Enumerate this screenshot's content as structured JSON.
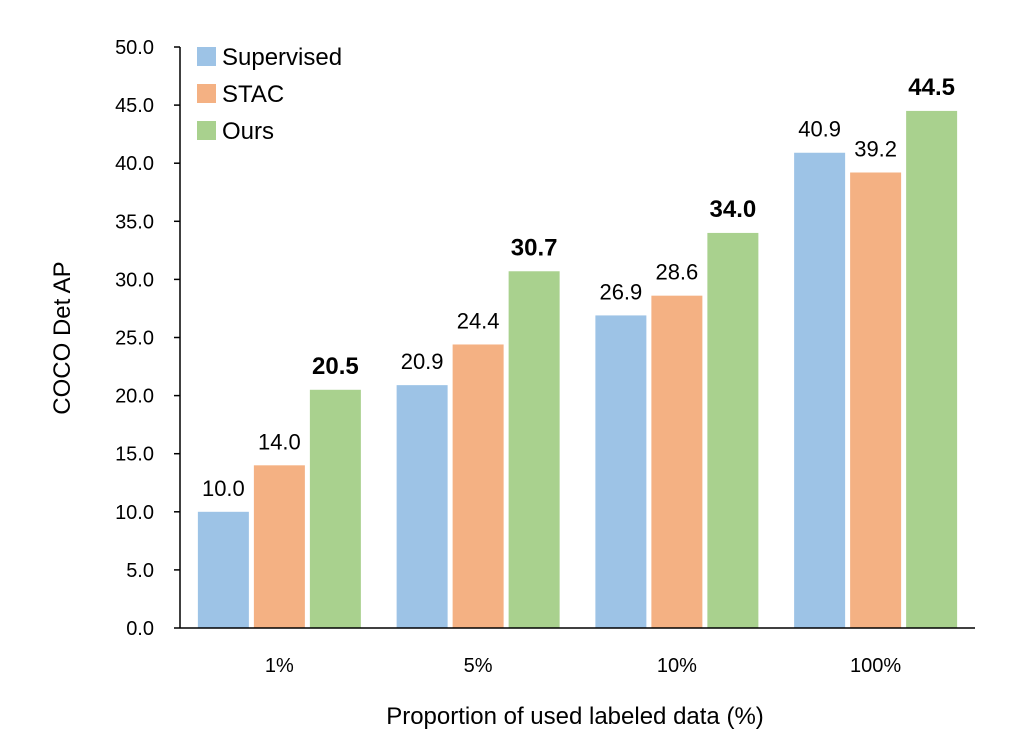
{
  "chart_data": {
    "type": "bar",
    "title": "",
    "xlabel": "Proportion of used labeled data (%)",
    "ylabel": "COCO Det AP",
    "ylim": [
      0,
      50
    ],
    "yticks": [
      "0.0",
      "5.0",
      "10.0",
      "15.0",
      "20.0",
      "25.0",
      "30.0",
      "35.0",
      "40.0",
      "45.0",
      "50.0"
    ],
    "categories": [
      "1%",
      "5%",
      "10%",
      "100%"
    ],
    "series": [
      {
        "name": "Supervised",
        "color": "#9DC3E6",
        "values": [
          10.0,
          20.9,
          26.9,
          40.9
        ],
        "labels": [
          "10.0",
          "20.9",
          "26.9",
          "40.9"
        ],
        "bold": false
      },
      {
        "name": "STAC",
        "color": "#F4B183",
        "values": [
          14.0,
          24.4,
          28.6,
          39.2
        ],
        "labels": [
          "14.0",
          "24.4",
          "28.6",
          "39.2"
        ],
        "bold": false
      },
      {
        "name": "Ours",
        "color": "#A9D18E",
        "values": [
          20.5,
          30.7,
          34.0,
          44.5
        ],
        "labels": [
          "20.5",
          "30.7",
          "34.0",
          "44.5"
        ],
        "bold": true
      }
    ],
    "legend_position": "top-left",
    "grid": false
  }
}
